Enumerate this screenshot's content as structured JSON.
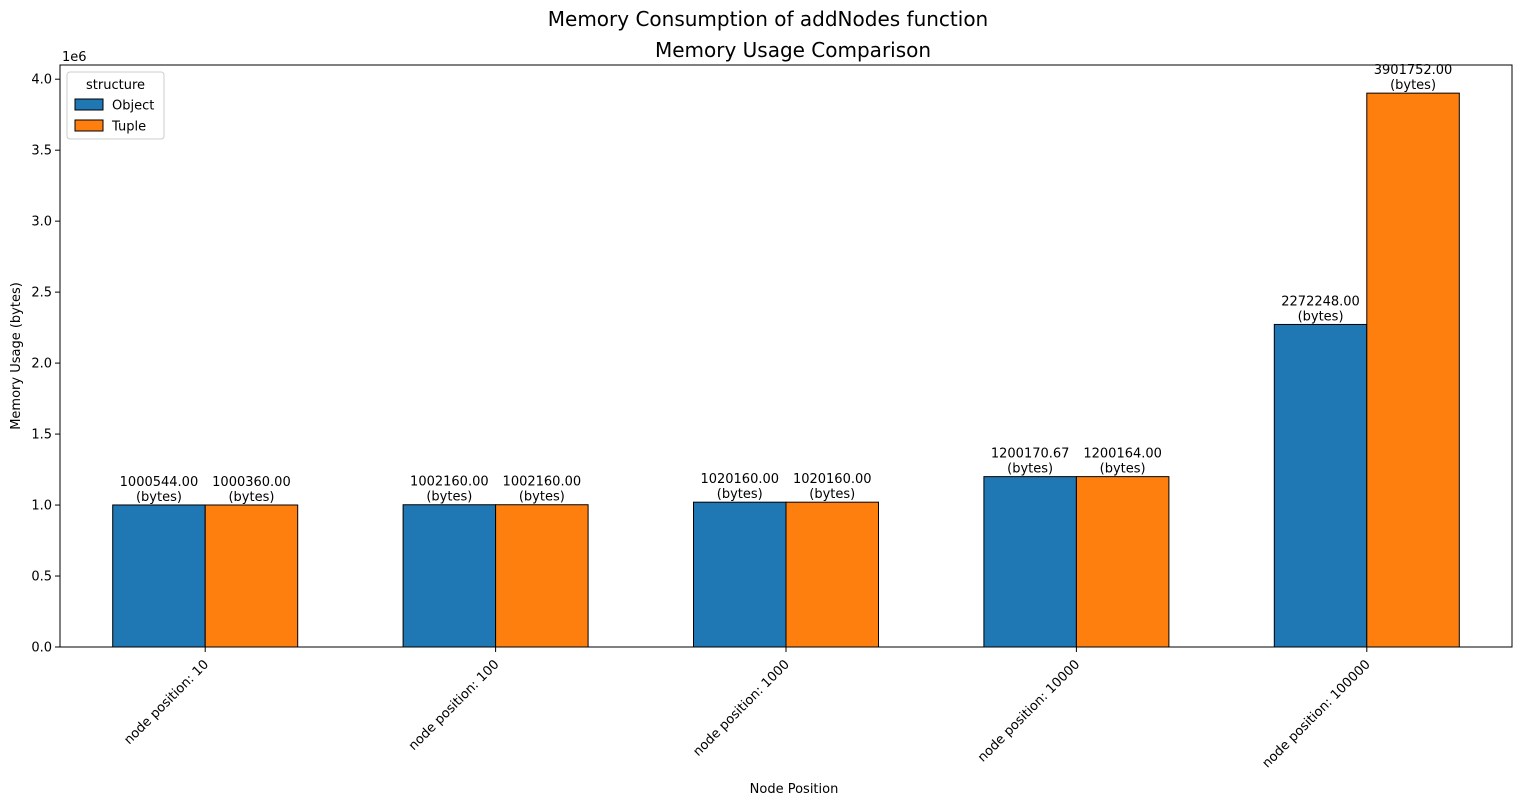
{
  "figure_title": "Memory Consumption of addNodes function",
  "chart_data": {
    "type": "bar",
    "title": "Memory Usage Comparison",
    "xlabel": "Node Position",
    "ylabel": "Memory Usage (bytes)",
    "y_offset_label": "1e6",
    "ylim": [
      0,
      4100000
    ],
    "yticks": [
      0,
      500000,
      1000000,
      1500000,
      2000000,
      2500000,
      3000000,
      3500000,
      4000000
    ],
    "ytick_labels": [
      "0.0",
      "0.5",
      "1.0",
      "1.5",
      "2.0",
      "2.5",
      "3.0",
      "3.5",
      "4.0"
    ],
    "categories": [
      "node position: 10",
      "node position: 100",
      "node position: 1000",
      "node position: 10000",
      "node position: 100000"
    ],
    "legend": {
      "title": "structure",
      "location": "upper-left"
    },
    "unit_label": "(bytes)",
    "series": [
      {
        "name": "Object",
        "color": "#1f77b4",
        "values": [
          1000544.0,
          1002160.0,
          1020160.0,
          1200170.67,
          2272248.0
        ],
        "labels": [
          "1000544.00",
          "1002160.00",
          "1020160.00",
          "1200170.67",
          "2272248.00"
        ]
      },
      {
        "name": "Tuple",
        "color": "#ff7f0e",
        "values": [
          1000360.0,
          1002160.0,
          1020160.0,
          1200164.0,
          3901752.0
        ],
        "labels": [
          "1000360.00",
          "1002160.00",
          "1020160.00",
          "1200164.00",
          "3901752.00"
        ]
      }
    ]
  }
}
